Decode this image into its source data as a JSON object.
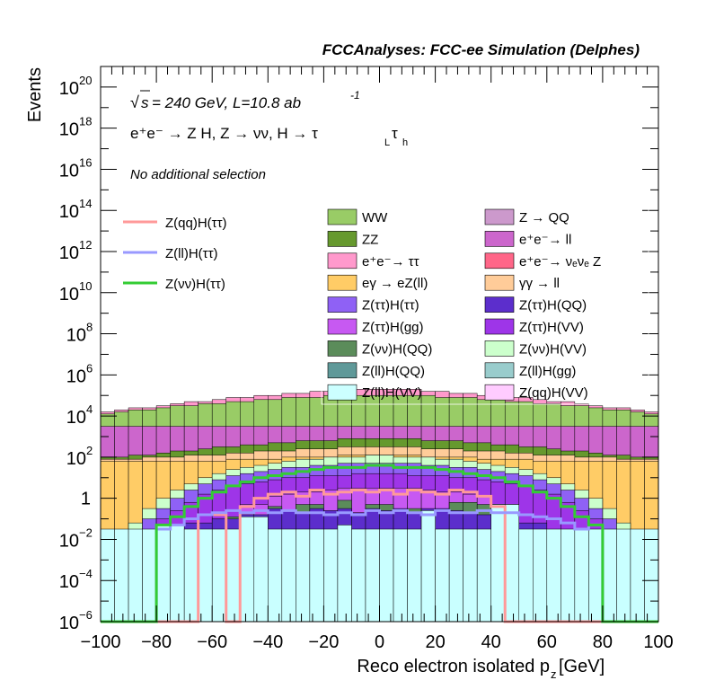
{
  "chart_data": {
    "type": "histogram",
    "title": "FCCAnalyses: FCC-ee Simulation (Delphes)",
    "xlabel": "Reco electron isolated p",
    "xlabel_sub": "z",
    "xlabel_unit": "[GeV]",
    "ylabel": "Events",
    "xlim": [
      -100,
      100
    ],
    "ylim_exp": [
      -6,
      21
    ],
    "ylog": true,
    "x_ticks": [
      "−100",
      "−80",
      "−60",
      "−40",
      "−20",
      "0",
      "20",
      "40",
      "60",
      "80",
      "100"
    ],
    "y_ticks": [
      {
        "label": "10",
        "exp": "−6",
        "e": -6
      },
      {
        "label": "10",
        "exp": "−4",
        "e": -4
      },
      {
        "label": "10",
        "exp": "−2",
        "e": -2
      },
      {
        "label": "1",
        "exp": "",
        "e": 0
      },
      {
        "label": "10",
        "exp": "2",
        "e": 2
      },
      {
        "label": "10",
        "exp": "4",
        "e": 4
      },
      {
        "label": "10",
        "exp": "6",
        "e": 6
      },
      {
        "label": "10",
        "exp": "8",
        "e": 8
      },
      {
        "label": "10",
        "exp": "10",
        "e": 10
      },
      {
        "label": "10",
        "exp": "12",
        "e": 12
      },
      {
        "label": "10",
        "exp": "14",
        "e": 14
      },
      {
        "label": "10",
        "exp": "16",
        "e": 16
      },
      {
        "label": "10",
        "exp": "18",
        "e": 18
      },
      {
        "label": "10",
        "exp": "20",
        "e": 20
      }
    ],
    "annotations": {
      "energy": "= 240 GeV, L=10.8 ab",
      "sqrt_s": "s",
      "lumi_exp": "-1",
      "process": "e⁺e⁻ → Z H, Z → νν, H → τ",
      "tau1_sub": "L",
      "tau2": "τ",
      "tau2_sub": "h",
      "selection": "No additional selection"
    },
    "stack_series": [
      {
        "name": "Z(ll)H(VV)",
        "color": "#c9ffff",
        "envelope": [
          -1.5,
          -1.5,
          -1.5,
          -1.5,
          -1.3,
          -1.3,
          -1.5,
          -1.5,
          -1.5,
          -1.5,
          -0.9,
          -0.9,
          -1.5,
          -1.5,
          -1.5,
          -1.5,
          -1.5,
          -1.3,
          -1.5,
          -1.5,
          -1.5,
          -1.5,
          -1.5,
          -0.6,
          -1.5,
          -1.5,
          -1.5,
          -1.5,
          -0.3,
          -0.3,
          -1.5,
          -1.5,
          -1.5,
          -1.5,
          -1.5,
          -1.5,
          -1.5,
          -1.5,
          -1.5,
          -1.5
        ]
      },
      {
        "name": "Z(ττ)H(QQ)",
        "color": "#5c2ecc",
        "envelope": [
          -9,
          -9,
          -9,
          -9,
          -9,
          -9,
          -1.2,
          -1.2,
          -1.0,
          -1.0,
          -0.8,
          -0.8,
          -0.5,
          -0.6,
          -0.7,
          -0.5,
          -0.6,
          -0.5,
          -0.7,
          -0.5,
          -0.6,
          -0.5,
          -0.7,
          -0.5,
          -0.5,
          -0.6,
          -0.7,
          -0.8,
          -0.8,
          -1.0,
          -1.2,
          -1.2,
          -9,
          -9,
          -9,
          -9,
          -9,
          -9,
          -9,
          -9
        ]
      },
      {
        "name": "Z(νν)H(QQ)",
        "color": "#5b8c5a",
        "envelope": [
          -9,
          -9,
          -9,
          -9,
          -9,
          -9,
          -9,
          -9,
          -9,
          -0.9,
          -0.9,
          -9,
          -0.4,
          -9,
          -0.3,
          -0.3,
          -9,
          -0.1,
          -9,
          -0.3,
          -0.3,
          -9,
          -0.5,
          -9,
          -9,
          -0.2,
          -0.2,
          -0.3,
          -0.3,
          -9,
          -9,
          -9,
          -9,
          -9,
          -9,
          -9,
          -9,
          -9,
          -9,
          -9
        ]
      },
      {
        "name": "Z(ττ)H(gg)",
        "color": "#c759f2",
        "envelope": [
          -9,
          -9,
          -9,
          -9,
          -9,
          -9,
          -9,
          -9,
          -9,
          -9,
          -0.3,
          -0.3,
          0.1,
          0.2,
          0.3,
          0.3,
          0.4,
          0.5,
          0.5,
          0.5,
          0.5,
          0.5,
          0.5,
          0.4,
          0.3,
          0.3,
          0.2,
          0.1,
          -0.3,
          -0.3,
          -9,
          -9,
          -9,
          -9,
          -9,
          -9,
          -9,
          -9,
          -9,
          -9
        ]
      },
      {
        "name": "Z(ττ)H(VV)",
        "color": "#9e35e8",
        "envelope": [
          -9,
          -9,
          -9,
          -9,
          -1.0,
          -0.6,
          -0.2,
          0.2,
          0.4,
          0.6,
          0.7,
          0.8,
          0.9,
          1.0,
          1.0,
          1.1,
          1.1,
          1.1,
          1.2,
          1.2,
          1.2,
          1.2,
          1.1,
          1.1,
          1.1,
          1.0,
          1.0,
          0.9,
          0.8,
          0.7,
          0.6,
          0.4,
          0.2,
          -0.2,
          -0.6,
          -1.0,
          -9,
          -9,
          -9,
          -9
        ]
      },
      {
        "name": "Z(ττ)H(ττ)",
        "color": "#8f61f5",
        "envelope": [
          -9,
          -9,
          -9,
          -1.0,
          -0.5,
          0.0,
          0.4,
          0.7,
          0.9,
          1.1,
          1.2,
          1.3,
          1.4,
          1.5,
          1.5,
          1.6,
          1.6,
          1.7,
          1.7,
          1.7,
          1.7,
          1.7,
          1.7,
          1.6,
          1.6,
          1.5,
          1.5,
          1.4,
          1.3,
          1.2,
          1.1,
          0.9,
          0.7,
          0.4,
          0.0,
          -0.5,
          -1.0,
          -9,
          -9,
          -9
        ]
      },
      {
        "name": "Z(νν)H(VV)",
        "color": "#ccffcc",
        "envelope": [
          -9,
          -9,
          -1.2,
          -0.5,
          0.0,
          0.4,
          0.7,
          1.0,
          1.2,
          1.4,
          1.5,
          1.6,
          1.7,
          1.8,
          1.9,
          1.9,
          2.0,
          2.0,
          2.0,
          2.1,
          2.1,
          2.0,
          2.0,
          2.0,
          1.9,
          1.9,
          1.8,
          1.7,
          1.6,
          1.5,
          1.4,
          1.2,
          1.0,
          0.7,
          0.4,
          0.0,
          -0.5,
          -1.2,
          -9,
          -9
        ]
      },
      {
        "name": "eγ → eZ(ll)",
        "color": "#ffcc66",
        "envelope": [
          1.8,
          1.8,
          1.8,
          1.8,
          1.8,
          1.8,
          1.8,
          1.8,
          1.8,
          1.9,
          1.9,
          1.9,
          1.9,
          2.0,
          2.0,
          2.0,
          2.0,
          2.1,
          2.1,
          2.1,
          2.1,
          2.1,
          2.1,
          2.0,
          2.0,
          2.0,
          2.0,
          1.9,
          1.9,
          1.9,
          1.9,
          1.8,
          1.8,
          1.8,
          1.8,
          1.8,
          1.8,
          1.8,
          1.8,
          1.8
        ]
      },
      {
        "name": "γγ → ll",
        "color": "#ffcc99",
        "envelope": [
          1.9,
          1.9,
          1.9,
          2.0,
          2.0,
          2.0,
          2.1,
          2.1,
          2.1,
          2.2,
          2.2,
          2.3,
          2.3,
          2.3,
          2.4,
          2.4,
          2.4,
          2.5,
          2.5,
          2.5,
          2.5,
          2.5,
          2.5,
          2.4,
          2.4,
          2.4,
          2.3,
          2.3,
          2.3,
          2.2,
          2.2,
          2.1,
          2.1,
          2.1,
          2.0,
          2.0,
          2.0,
          1.9,
          1.9,
          1.9
        ]
      },
      {
        "name": "ZZ",
        "color": "#66992e",
        "envelope": [
          2.0,
          2.0,
          2.1,
          2.1,
          2.2,
          2.3,
          2.3,
          2.4,
          2.5,
          2.5,
          2.6,
          2.6,
          2.7,
          2.7,
          2.8,
          2.8,
          2.8,
          2.9,
          2.9,
          2.9,
          2.9,
          2.9,
          2.9,
          2.8,
          2.8,
          2.8,
          2.7,
          2.7,
          2.6,
          2.6,
          2.5,
          2.5,
          2.4,
          2.3,
          2.3,
          2.2,
          2.1,
          2.1,
          2.0,
          2.0
        ]
      },
      {
        "name": "e⁺e⁻ → ll",
        "color": "#cc66cc",
        "envelope": [
          3.5,
          3.5,
          3.5,
          3.5,
          3.5,
          3.5,
          3.5,
          3.5,
          3.5,
          3.5,
          3.5,
          3.5,
          3.5,
          3.5,
          3.5,
          3.5,
          3.5,
          3.5,
          3.5,
          3.5,
          3.5,
          3.5,
          3.5,
          3.5,
          3.5,
          3.5,
          3.5,
          3.5,
          3.5,
          3.5,
          3.5,
          3.5,
          3.5,
          3.5,
          3.5,
          3.5,
          3.5,
          3.5,
          3.5,
          3.5
        ]
      },
      {
        "name": "WW",
        "color": "#99cc66",
        "envelope": [
          4.1,
          4.2,
          4.3,
          4.3,
          4.4,
          4.5,
          4.5,
          4.6,
          4.6,
          4.7,
          4.7,
          4.8,
          4.8,
          4.9,
          4.9,
          4.9,
          5.0,
          5.0,
          5.0,
          5.0,
          5.0,
          5.0,
          5.0,
          5.0,
          4.9,
          4.9,
          4.9,
          4.8,
          4.8,
          4.7,
          4.7,
          4.6,
          4.6,
          4.5,
          4.5,
          4.4,
          4.3,
          4.3,
          4.2,
          4.1
        ]
      },
      {
        "name": "e⁺e⁻ → ττ",
        "color": "#ff99cc",
        "envelope": [
          4.2,
          4.3,
          4.4,
          4.4,
          4.5,
          4.6,
          4.7,
          4.7,
          4.8,
          4.9,
          4.9,
          5.0,
          5.0,
          5.1,
          5.1,
          5.2,
          5.2,
          5.3,
          5.3,
          5.3,
          5.3,
          5.3,
          5.3,
          5.2,
          5.2,
          5.1,
          5.1,
          5.0,
          5.0,
          4.9,
          4.9,
          4.8,
          4.7,
          4.7,
          4.6,
          4.5,
          4.4,
          4.4,
          4.3,
          4.2
        ]
      }
    ],
    "lines": [
      {
        "name": "Z(qq)H(ττ)",
        "color": "#ff9999",
        "values": [
          -9,
          -9,
          -9,
          -9,
          -9,
          -9,
          -9,
          -0.8,
          -0.8,
          -9,
          -0.4,
          0.0,
          0.2,
          0.3,
          0.1,
          0.4,
          0.2,
          0.3,
          0.4,
          0.3,
          0.4,
          0.2,
          0.4,
          0.3,
          0.2,
          0.4,
          0.3,
          0.1,
          -0.4,
          -9,
          -9,
          -9,
          -9,
          -9,
          -9,
          -9,
          -9,
          -9,
          -9,
          -9
        ]
      },
      {
        "name": "Z(ll)H(ττ)",
        "color": "#9999ff",
        "values": [
          -9,
          -9,
          -9,
          -9,
          -1.5,
          -1.3,
          -1.0,
          -0.8,
          -0.7,
          -0.6,
          -0.7,
          -0.6,
          -0.7,
          -0.6,
          -0.7,
          -0.7,
          -0.8,
          -0.7,
          -0.8,
          -0.6,
          -0.7,
          -0.6,
          -0.7,
          -0.8,
          -0.6,
          -0.7,
          -0.7,
          -0.6,
          -0.7,
          -0.7,
          -0.8,
          -0.9,
          -1.0,
          -1.2,
          -1.5,
          -1.3,
          -9,
          -9,
          -9,
          -9
        ]
      },
      {
        "name": "Z(νν)H(ττ)",
        "color": "#33cc33",
        "values": [
          -9,
          -9,
          -9,
          -9,
          -1.3,
          -0.9,
          -0.4,
          0.0,
          0.3,
          0.6,
          0.8,
          1.0,
          1.1,
          1.2,
          1.3,
          1.4,
          1.5,
          1.5,
          1.5,
          1.6,
          1.6,
          1.5,
          1.5,
          1.5,
          1.4,
          1.3,
          1.2,
          1.1,
          1.0,
          0.8,
          0.6,
          0.3,
          0.0,
          -0.4,
          -0.9,
          -1.3,
          -9,
          -9,
          -9,
          -9
        ]
      }
    ],
    "legend_lines": [
      "Z(qq)H(ττ)",
      "Z(ll)H(ττ)",
      "Z(νν)H(ττ)"
    ],
    "legend_boxes": [
      {
        "label": "WW",
        "color": "#99cc66"
      },
      {
        "label": "Z → QQ",
        "color": "#cc99cc"
      },
      {
        "label": "ZZ",
        "color": "#66992e"
      },
      {
        "label": "e⁺e⁻→ ll",
        "color": "#cc66cc"
      },
      {
        "label": "e⁺e⁻→ ττ",
        "color": "#ff99cc"
      },
      {
        "label": "e⁺e⁻→ νₑνₑ Z",
        "color": "#ff6688"
      },
      {
        "label": "eγ → eZ(ll)",
        "color": "#ffcc66"
      },
      {
        "label": "γγ → ll",
        "color": "#ffcc99"
      },
      {
        "label": "Z(ττ)H(ττ)",
        "color": "#8f61f5"
      },
      {
        "label": "Z(ττ)H(QQ)",
        "color": "#5c2ecc"
      },
      {
        "label": "Z(ττ)H(gg)",
        "color": "#c759f2"
      },
      {
        "label": "Z(ττ)H(VV)",
        "color": "#9e35e8"
      },
      {
        "label": "Z(νν)H(QQ)",
        "color": "#5b8c5a"
      },
      {
        "label": "Z(νν)H(VV)",
        "color": "#ccffcc"
      },
      {
        "label": "Z(ll)H(QQ)",
        "color": "#5f9999"
      },
      {
        "label": "Z(ll)H(gg)",
        "color": "#99cccc"
      },
      {
        "label": "Z(ll)H(VV)",
        "color": "#ccffff"
      },
      {
        "label": "Z(qq)H(VV)",
        "color": "#ffccff"
      }
    ],
    "background_fill": {
      "name": "e⁺e⁻→ νₑνₑ Z",
      "color": "#ff6688",
      "level_exp": 2
    }
  }
}
